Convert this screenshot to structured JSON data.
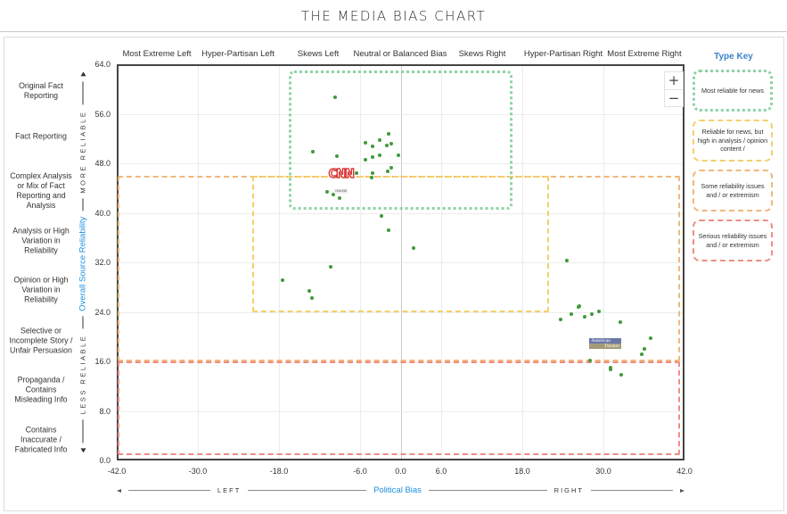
{
  "page": {
    "title": "THE MEDIA BIAS CHART"
  },
  "chart_data": {
    "type": "scatter",
    "title": "THE MEDIA BIAS CHART",
    "xlabel": "Political Bias",
    "ylabel": "Overall Source Reliability",
    "xlim": [
      -42,
      42
    ],
    "ylim": [
      0,
      64
    ],
    "x_ticks": [
      -42.0,
      -30.0,
      -18.0,
      -6.0,
      0.0,
      6.0,
      18.0,
      30.0,
      42.0
    ],
    "x_tick_labels": [
      "-42.0",
      "-30.0",
      "-18.0",
      "-6.0",
      "0.0",
      "6.0",
      "18.0",
      "30.0",
      "42.0"
    ],
    "y_ticks": [
      0,
      8,
      16,
      24,
      32,
      40,
      48,
      56,
      64
    ],
    "y_tick_labels": [
      "0.0",
      "8.0",
      "16.0",
      "24.0",
      "32.0",
      "40.0",
      "48.0",
      "56.0",
      "64.0"
    ],
    "x_axis_direction": {
      "left": "LEFT",
      "right": "RIGHT"
    },
    "y_axis_direction": {
      "top": "MORE RELIABLE",
      "bottom": "LESS RELIABLE"
    },
    "grid": true,
    "legend_position": "right",
    "column_headers": [
      {
        "label": "Most Extreme Left",
        "x": -36
      },
      {
        "label": "Hyper-Partisan Left",
        "x": -24
      },
      {
        "label": "Skews Left",
        "x": -12
      },
      {
        "label": "Neutral or Balanced Bias",
        "x": 0
      },
      {
        "label": "Skews Right",
        "x": 12
      },
      {
        "label": "Hyper-Partisan Right",
        "x": 24
      },
      {
        "label": "Most Extreme Right",
        "x": 36
      }
    ],
    "row_labels": [
      {
        "label": "Original Fact Reporting",
        "y": 60
      },
      {
        "label": "Fact Reporting",
        "y": 52
      },
      {
        "label": "Complex Analysis or Mix of Fact Reporting and Analysis",
        "y": 44
      },
      {
        "label": "Analysis or High Variation in Reliability",
        "y": 36
      },
      {
        "label": "Opinion or High Variation in Reliability",
        "y": 28
      },
      {
        "label": "Selective or Incomplete Story / Unfair Persuasion",
        "y": 20
      },
      {
        "label": "Propaganda / Contains Misleading Info",
        "y": 12
      },
      {
        "label": "Contains Inaccurate / Fabricated Info",
        "y": 4
      }
    ],
    "zones": [
      {
        "name": "Most reliable for news",
        "color": "#8fd3a8",
        "x": [
          -16.5,
          16.5
        ],
        "y": [
          40.5,
          63.0
        ]
      },
      {
        "name": "Reliable for news, but high in analysis / opinion content",
        "color": "#f6cf6a",
        "x": [
          -22.0,
          22.0
        ],
        "y": [
          24.0,
          46.0
        ]
      },
      {
        "name": "Some reliability issues and / or extremism",
        "color": "#f1b77a",
        "x": [
          -42.0,
          42.0
        ],
        "y": [
          16.0,
          46.0
        ],
        "excludes": "yellow zone"
      },
      {
        "name": "Serious reliability issues and / or extremism",
        "color": "#ee8d82",
        "x": [
          -42.0,
          42.0
        ],
        "y": [
          0.0,
          16.0
        ]
      }
    ],
    "series": [
      {
        "name": "Sources",
        "color": "#3f9a3a",
        "points": [
          {
            "x": -9.7,
            "y": 58.7
          },
          {
            "x": -13.0,
            "y": 49.9
          },
          {
            "x": -9.4,
            "y": 49.2
          },
          {
            "x": -5.2,
            "y": 51.3
          },
          {
            "x": -4.2,
            "y": 50.7
          },
          {
            "x": -3.1,
            "y": 51.7
          },
          {
            "x": -1.8,
            "y": 52.8
          },
          {
            "x": -1.4,
            "y": 51.2
          },
          {
            "x": -2.0,
            "y": 50.9
          },
          {
            "x": -5.2,
            "y": 48.6
          },
          {
            "x": -4.2,
            "y": 49.0
          },
          {
            "x": -3.1,
            "y": 49.3
          },
          {
            "x": -0.3,
            "y": 49.3
          },
          {
            "x": -6.5,
            "y": 46.4
          },
          {
            "x": -4.2,
            "y": 46.4
          },
          {
            "x": -4.3,
            "y": 45.7
          },
          {
            "x": -1.9,
            "y": 46.7
          },
          {
            "x": -1.4,
            "y": 47.3
          },
          {
            "x": -10.9,
            "y": 43.4
          },
          {
            "x": -9.9,
            "y": 43.0
          },
          {
            "x": -9.0,
            "y": 42.4
          },
          {
            "x": -2.8,
            "y": 39.5
          },
          {
            "x": -1.8,
            "y": 37.2
          },
          {
            "x": 1.9,
            "y": 34.3
          },
          {
            "x": -10.4,
            "y": 31.3
          },
          {
            "x": -17.5,
            "y": 29.1
          },
          {
            "x": -13.5,
            "y": 27.4
          },
          {
            "x": -13.1,
            "y": 26.2
          },
          {
            "x": 24.6,
            "y": 32.3
          },
          {
            "x": 23.7,
            "y": 22.8
          },
          {
            "x": 25.3,
            "y": 23.6
          },
          {
            "x": 26.3,
            "y": 24.8
          },
          {
            "x": 26.4,
            "y": 25.0
          },
          {
            "x": 27.2,
            "y": 23.2
          },
          {
            "x": 28.3,
            "y": 23.6
          },
          {
            "x": 29.3,
            "y": 24.1
          },
          {
            "x": 32.5,
            "y": 22.3
          },
          {
            "x": 37.0,
            "y": 19.7
          },
          {
            "x": 36.1,
            "y": 18.0
          },
          {
            "x": 35.7,
            "y": 17.2
          },
          {
            "x": 28.0,
            "y": 16.1
          },
          {
            "x": 31.0,
            "y": 15.0
          },
          {
            "x": 31.0,
            "y": 14.7
          },
          {
            "x": 32.6,
            "y": 13.8
          },
          {
            "x": 29.3,
            "y": 18.5
          }
        ]
      }
    ],
    "annotations": [
      {
        "type": "logo",
        "label": "CNN",
        "sub_label": "ONLINE",
        "x": -8.8,
        "y": 44.8
      },
      {
        "type": "logo",
        "label": "American",
        "sub_label": "Thinker",
        "x": 30.3,
        "y": 18.9
      }
    ]
  },
  "legend": {
    "title": "Type Key",
    "items": [
      {
        "label": "Most reliable for news",
        "color": "#8fd3a8"
      },
      {
        "label": "Reliable for news, but high in analysis / opinion content /",
        "color": "#f6cf6a"
      },
      {
        "label": "Some reliability issues and / or extremism",
        "color": "#f1b77a"
      },
      {
        "label": "Serious reliability issues and / or extremism",
        "color": "#ee8d82"
      }
    ]
  },
  "axes": {
    "y_title": "Overall Source Reliability",
    "y_top": "MORE RELIABLE",
    "y_bottom": "LESS RELIABLE",
    "x_title": "Political Bias",
    "x_left": "LEFT",
    "x_right": "RIGHT"
  },
  "controls": {
    "zoom_in": "+",
    "zoom_out": "−"
  }
}
